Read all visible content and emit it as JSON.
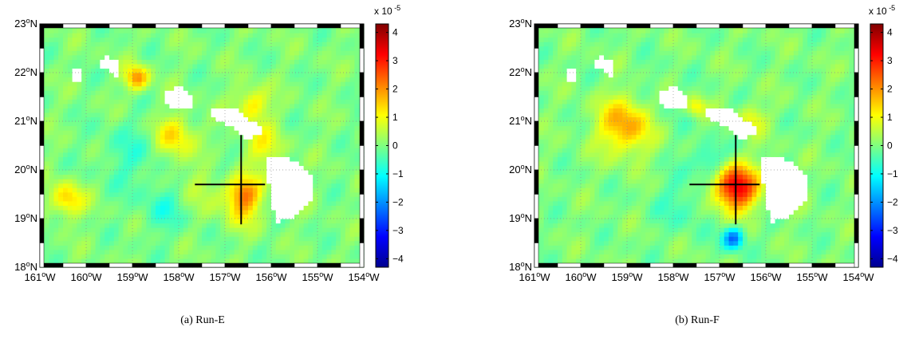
{
  "chart_data": [
    {
      "type": "heatmap",
      "caption": "(a)  Run-E",
      "x_ticks": [
        "161°W",
        "160°W",
        "159°W",
        "158°W",
        "157°W",
        "156°W",
        "155°W",
        "154°W"
      ],
      "y_ticks": [
        "18°N",
        "19°N",
        "20°N",
        "21°N",
        "22°N",
        "23°N"
      ],
      "xlim": [
        -161,
        -154
      ],
      "ylim": [
        18,
        23
      ],
      "colorbar": {
        "range": [
          -4.3,
          4.3
        ],
        "ticks": [
          4,
          3,
          2,
          1,
          0,
          -1,
          -2,
          -3,
          -4
        ],
        "multiplier": "x 10",
        "exponent": "-5"
      },
      "grid": true,
      "crosshair": {
        "lon": -156.65,
        "lat": 19.7
      },
      "islands": [
        [
          [
            -159.35,
            21.9
          ],
          [
            -159.55,
            22.05
          ],
          [
            -159.75,
            22.2
          ],
          [
            -159.6,
            22.35
          ],
          [
            -159.3,
            22.25
          ],
          [
            -159.3,
            22.05
          ]
        ],
        [
          [
            -160.25,
            22.05
          ],
          [
            -160.05,
            22.05
          ],
          [
            -160.05,
            21.8
          ],
          [
            -160.25,
            21.8
          ]
        ],
        [
          [
            -158.3,
            21.6
          ],
          [
            -157.95,
            21.75
          ],
          [
            -157.7,
            21.5
          ],
          [
            -157.7,
            21.25
          ],
          [
            -158.1,
            21.25
          ],
          [
            -158.3,
            21.35
          ]
        ],
        [
          [
            -157.3,
            21.25
          ],
          [
            -156.7,
            21.25
          ],
          [
            -156.5,
            21.05
          ],
          [
            -156.3,
            21.0
          ],
          [
            -156.2,
            20.8
          ],
          [
            -156.5,
            20.6
          ],
          [
            -156.95,
            20.95
          ],
          [
            -157.25,
            21.05
          ]
        ],
        [
          [
            -156.05,
            20.25
          ],
          [
            -155.75,
            20.3
          ],
          [
            -155.4,
            20.15
          ],
          [
            -155.05,
            19.75
          ],
          [
            -155.1,
            19.4
          ],
          [
            -155.5,
            19.0
          ],
          [
            -155.85,
            18.95
          ],
          [
            -155.95,
            19.2
          ],
          [
            -156.05,
            19.75
          ]
        ]
      ],
      "field": [
        {
          "lon": -156.6,
          "lat": 19.55,
          "amp": 1.7,
          "r": 0.25
        },
        {
          "lon": -156.6,
          "lat": 19.2,
          "amp": 0.9,
          "r": 0.3
        },
        {
          "lon": -158.1,
          "lat": 20.7,
          "amp": 1.3,
          "r": 0.3
        },
        {
          "lon": -158.9,
          "lat": 21.9,
          "amp": 2.0,
          "r": 0.18
        },
        {
          "lon": -156.4,
          "lat": 21.35,
          "amp": 1.3,
          "r": 0.25
        },
        {
          "lon": -156.2,
          "lat": 20.5,
          "amp": 1.0,
          "r": 0.3
        },
        {
          "lon": -160.4,
          "lat": 19.4,
          "amp": 1.5,
          "r": 0.25
        },
        {
          "lon": -157.4,
          "lat": 19.9,
          "amp": 0.7,
          "r": 0.45
        },
        {
          "lon": -158.3,
          "lat": 19.2,
          "amp": -0.6,
          "r": 0.35
        },
        {
          "lon": -157.2,
          "lat": 20.1,
          "amp": -0.8,
          "r": 0.3
        },
        {
          "lon": -159.0,
          "lat": 20.3,
          "amp": -0.5,
          "r": 0.5
        }
      ]
    },
    {
      "type": "heatmap",
      "caption": "(b)  Run-F",
      "x_ticks": [
        "161°W",
        "160°W",
        "159°W",
        "158°W",
        "157°W",
        "156°W",
        "155°W",
        "154°W"
      ],
      "y_ticks": [
        "18°N",
        "19°N",
        "20°N",
        "21°N",
        "22°N",
        "23°N"
      ],
      "xlim": [
        -161,
        -154
      ],
      "ylim": [
        18,
        23
      ],
      "colorbar": {
        "range": [
          -4.3,
          4.3
        ],
        "ticks": [
          4,
          3,
          2,
          1,
          0,
          -1,
          -2,
          -3,
          -4
        ],
        "multiplier": "x 10",
        "exponent": "-5"
      },
      "grid": true,
      "crosshair": {
        "lon": -156.65,
        "lat": 19.7
      },
      "islands": [
        [
          [
            -159.35,
            21.9
          ],
          [
            -159.55,
            22.05
          ],
          [
            -159.75,
            22.2
          ],
          [
            -159.6,
            22.35
          ],
          [
            -159.3,
            22.25
          ],
          [
            -159.3,
            22.05
          ]
        ],
        [
          [
            -160.25,
            22.05
          ],
          [
            -160.05,
            22.05
          ],
          [
            -160.05,
            21.8
          ],
          [
            -160.25,
            21.8
          ]
        ],
        [
          [
            -158.3,
            21.6
          ],
          [
            -157.95,
            21.75
          ],
          [
            -157.7,
            21.5
          ],
          [
            -157.7,
            21.25
          ],
          [
            -158.1,
            21.25
          ],
          [
            -158.3,
            21.35
          ]
        ],
        [
          [
            -157.3,
            21.25
          ],
          [
            -156.7,
            21.25
          ],
          [
            -156.5,
            21.05
          ],
          [
            -156.3,
            21.0
          ],
          [
            -156.2,
            20.8
          ],
          [
            -156.5,
            20.6
          ],
          [
            -156.95,
            20.95
          ],
          [
            -157.25,
            21.05
          ]
        ],
        [
          [
            -156.05,
            20.25
          ],
          [
            -155.75,
            20.3
          ],
          [
            -155.4,
            20.15
          ],
          [
            -155.05,
            19.75
          ],
          [
            -155.1,
            19.4
          ],
          [
            -155.5,
            19.0
          ],
          [
            -155.85,
            18.95
          ],
          [
            -155.95,
            19.2
          ],
          [
            -156.05,
            19.75
          ]
        ]
      ],
      "field": [
        {
          "lon": -156.65,
          "lat": 19.65,
          "amp": 3.5,
          "r": 0.33
        },
        {
          "lon": -159.0,
          "lat": 20.95,
          "amp": 2.2,
          "r": 0.42
        },
        {
          "lon": -156.7,
          "lat": 18.6,
          "amp": -2.4,
          "r": 0.16
        },
        {
          "lon": -157.2,
          "lat": 20.2,
          "amp": -1.0,
          "r": 0.25
        },
        {
          "lon": -157.5,
          "lat": 21.3,
          "amp": 1.2,
          "r": 0.15
        },
        {
          "lon": -156.3,
          "lat": 21.05,
          "amp": 1.0,
          "r": 0.2
        },
        {
          "lon": -157.8,
          "lat": 19.3,
          "amp": -0.5,
          "r": 0.4
        },
        {
          "lon": -158.6,
          "lat": 21.2,
          "amp": -0.5,
          "r": 0.5
        }
      ]
    }
  ]
}
